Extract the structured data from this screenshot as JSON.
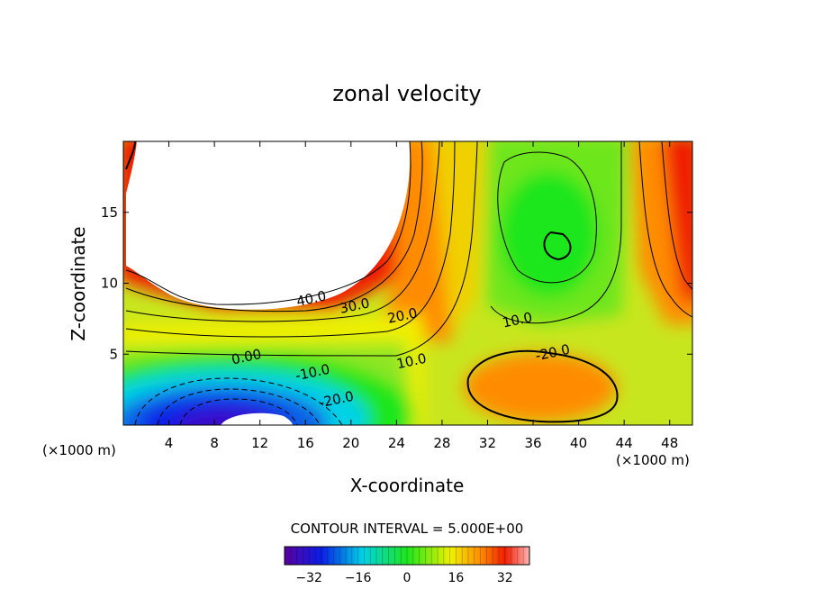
{
  "chart_data": {
    "type": "heatmap",
    "title": "zonal velocity",
    "xlabel": "X-coordinate",
    "ylabel": "Z-coordinate",
    "x_unit": "(×1000 m)",
    "z_unit": "(×1000 m)",
    "xlim": [
      0,
      50
    ],
    "ylim": [
      0,
      20
    ],
    "x_ticks": [
      4,
      8,
      12,
      16,
      20,
      24,
      28,
      32,
      36,
      40,
      44,
      48
    ],
    "y_ticks": [
      5,
      10,
      15
    ],
    "contour_interval_text": "CONTOUR INTERVAL = 5.000E+00",
    "contour_labels": [
      {
        "text": "40.0",
        "x": 16.6,
        "z": 8.6
      },
      {
        "text": "30.0",
        "x": 20.4,
        "z": 8.1
      },
      {
        "text": "20.0",
        "x": 24.6,
        "z": 7.4
      },
      {
        "text": "10.0",
        "x": 34.7,
        "z": 7.1
      },
      {
        "text": "0.00",
        "x": 10.9,
        "z": 4.5
      },
      {
        "text": "10.0",
        "x": 25.4,
        "z": 4.2
      },
      {
        "text": "-20.0",
        "x": 37.8,
        "z": 4.8
      },
      {
        "text": "-10.0",
        "x": 16.7,
        "z": 3.4
      },
      {
        "text": "-20.0",
        "x": 18.8,
        "z": 1.5
      }
    ],
    "colorbar": {
      "range": [
        -40,
        40
      ],
      "ticks": [
        -32,
        -16,
        0,
        16,
        32
      ],
      "tick_labels": [
        "−32",
        "−16",
        "0",
        "16",
        "32"
      ]
    },
    "colors": {
      "negative_extreme": "#5a00a0",
      "blue": "#0a1ee6",
      "cyan": "#00d2e6",
      "green": "#1ee61e",
      "yellow": "#f0f000",
      "orange": "#ff8c00",
      "red": "#f01e00",
      "positive_extreme": "#ffb4b4"
    }
  }
}
